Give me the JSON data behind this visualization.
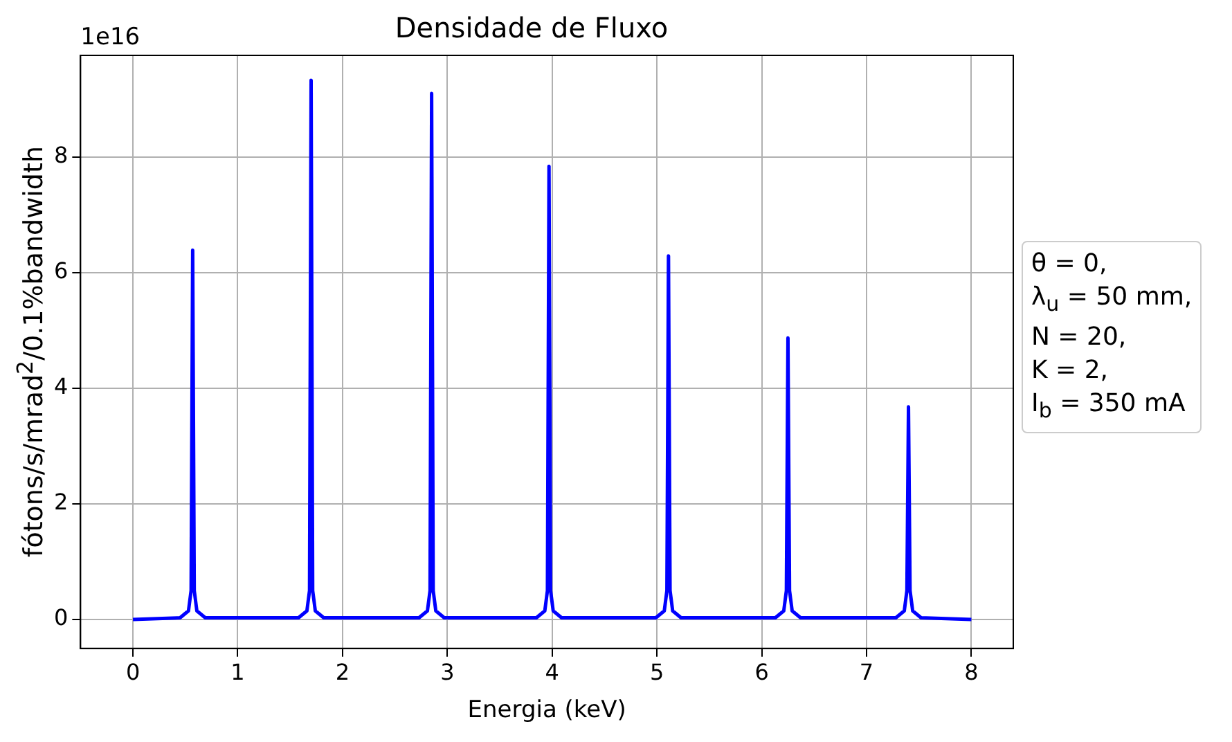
{
  "chart_data": {
    "type": "line",
    "title": "Densidade de Fluxo",
    "xlabel": "Energia (keV)",
    "ylabel": "fótons/s/mrad$^{2}$/0.1%bandwidth",
    "annotations": [
      "1e16",
      "θ = 0,",
      "λ$_{u}$ = 50 mm,",
      "N = 20,",
      "K = 2,",
      "I$_{b}$ = 350 mA"
    ],
    "x": [
      0,
      0.45,
      0.53,
      0.555,
      0.57,
      0.585,
      0.61,
      0.69,
      1.58,
      1.66,
      1.685,
      1.7,
      1.715,
      1.74,
      1.82,
      2.73,
      2.81,
      2.835,
      2.85,
      2.865,
      2.89,
      2.97,
      3.85,
      3.93,
      3.955,
      3.97,
      3.985,
      4.01,
      4.09,
      4.99,
      5.07,
      5.095,
      5.11,
      5.125,
      5.15,
      5.23,
      6.13,
      6.21,
      6.235,
      6.25,
      6.265,
      6.29,
      6.37,
      7.28,
      7.36,
      7.385,
      7.4,
      7.415,
      7.44,
      7.52,
      8
    ],
    "series": [
      {
        "color": "#0000ff",
        "values": [
          0,
          0.03,
          0.15,
          0.5,
          6.39,
          0.5,
          0.15,
          0.03,
          0.03,
          0.15,
          0.5,
          9.33,
          0.5,
          0.15,
          0.03,
          0.03,
          0.15,
          0.5,
          9.1,
          0.5,
          0.15,
          0.03,
          0.03,
          0.15,
          0.5,
          7.84,
          0.5,
          0.15,
          0.03,
          0.03,
          0.15,
          0.5,
          6.29,
          0.5,
          0.15,
          0.03,
          0.03,
          0.15,
          0.5,
          4.87,
          0.5,
          0.15,
          0.03,
          0.03,
          0.15,
          0.5,
          3.68,
          0.5,
          0.15,
          0.03,
          0
        ]
      }
    ],
    "xlim": [
      -0.5,
      8.4
    ],
    "xticks": [
      0,
      1,
      2,
      3,
      4,
      5,
      6,
      7,
      8
    ],
    "ylim": [
      -0.5,
      9.76
    ],
    "yticks": [
      0,
      2,
      4,
      6,
      8
    ],
    "grid": true,
    "legend": false,
    "marker": "none",
    "line_style": "solid"
  }
}
